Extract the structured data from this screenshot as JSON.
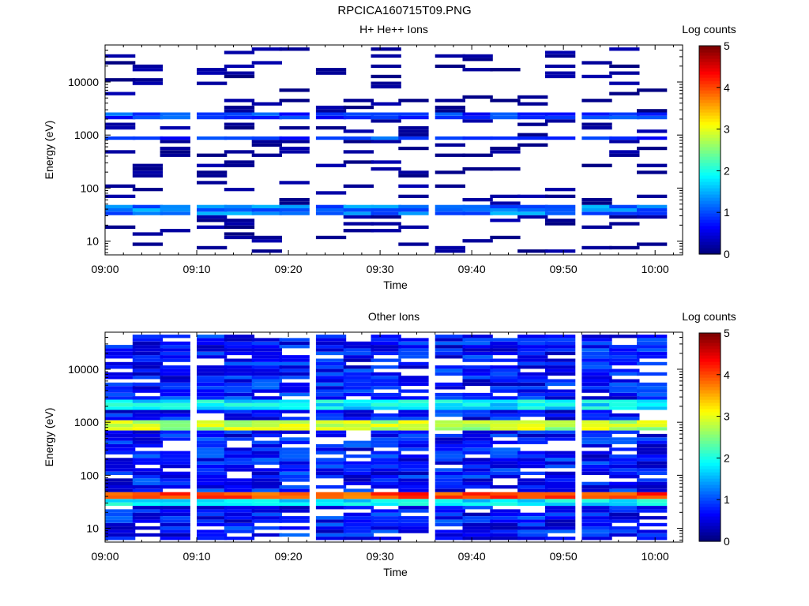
{
  "figure_title": "RPCICA160715T09.PNG",
  "chart_data": [
    {
      "type": "heatmap",
      "title": "H+ He++ Ions",
      "xlabel": "Time",
      "ylabel": "Energy (eV)",
      "colorbar_label": "Log counts",
      "colorbar_ticks": [
        "0",
        "1",
        "2",
        "3",
        "4",
        "5"
      ],
      "x_tick_labels": [
        "09:00",
        "09:10",
        "09:20",
        "09:30",
        "09:40",
        "09:50",
        "10:00"
      ],
      "y_tick_labels": [
        "10",
        "100",
        "1000",
        "10000"
      ],
      "y_scale": "log",
      "ylim": [
        5.5,
        50000
      ],
      "xlim": [
        "09:00",
        "10:03"
      ],
      "clim": [
        0,
        5
      ],
      "time_bins": [
        "09:00",
        "09:03",
        "09:06",
        "09:10",
        "09:13",
        "09:16",
        "09:19",
        "09:23",
        "09:26",
        "09:29",
        "09:32",
        "09:36",
        "09:39",
        "09:42",
        "09:45",
        "09:48",
        "09:52",
        "09:55",
        "09:58"
      ],
      "bands": [
        {
          "energy_range": [
            33,
            50
          ],
          "log_counts": 1.2
        },
        {
          "energy_range": [
            2000,
            2800
          ],
          "log_counts": 0.9
        },
        {
          "energy_range": [
            800,
            1000
          ],
          "log_counts": 0.9
        }
      ],
      "values_approximate": true
    },
    {
      "type": "heatmap",
      "title": "Other Ions",
      "xlabel": "Time",
      "ylabel": "Energy (eV)",
      "colorbar_label": "Log counts",
      "colorbar_ticks": [
        "0",
        "1",
        "2",
        "3",
        "4",
        "5"
      ],
      "x_tick_labels": [
        "09:00",
        "09:10",
        "09:20",
        "09:30",
        "09:40",
        "09:50",
        "10:00"
      ],
      "y_tick_labels": [
        "10",
        "100",
        "1000",
        "10000"
      ],
      "y_scale": "log",
      "ylim": [
        5.5,
        50000
      ],
      "xlim": [
        "09:00",
        "10:03"
      ],
      "clim": [
        0,
        5
      ],
      "time_bins": [
        "09:00",
        "09:03",
        "09:06",
        "09:10",
        "09:13",
        "09:16",
        "09:19",
        "09:23",
        "09:26",
        "09:29",
        "09:32",
        "09:36",
        "09:39",
        "09:42",
        "09:45",
        "09:48",
        "09:52",
        "09:55",
        "09:58"
      ],
      "bands": [
        {
          "energy_range": [
            35,
            50
          ],
          "log_counts": 4.0
        },
        {
          "energy_range": [
            750,
            1100
          ],
          "log_counts": 2.8
        },
        {
          "energy_range": [
            1800,
            2600
          ],
          "log_counts": 1.8
        },
        {
          "energy_range": [
            28,
            35
          ],
          "log_counts": 1.8
        }
      ],
      "values_approximate": true
    }
  ]
}
